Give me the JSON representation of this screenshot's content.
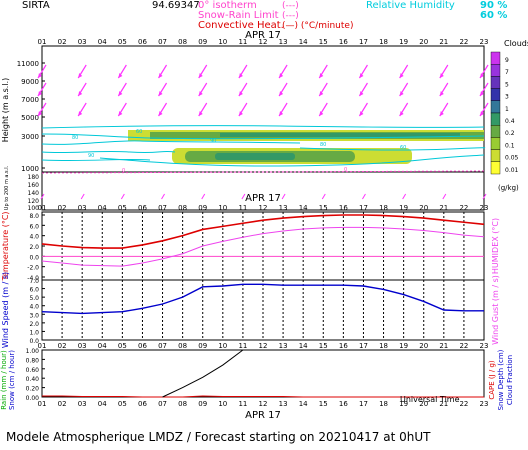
{
  "header": {
    "station": "SIRTA",
    "coords": "94.69347",
    "legend_left": [
      {
        "label": "0° isotherm",
        "line": "(---)",
        "color": "#ff44cc"
      },
      {
        "label": "Snow-Rain Limit",
        "line": "(---)",
        "color": "#ff44cc"
      },
      {
        "label": "Convective Heat.",
        "line": "(—) (°C/minute)",
        "color": "#dd0000"
      }
    ],
    "legend_right": {
      "label": "Relative Humidity",
      "v1": "90 %",
      "v2": "60 %",
      "color": "#00ccdd"
    }
  },
  "date_label": "APR 17",
  "hours": [
    "01",
    "02",
    "03",
    "04",
    "05",
    "06",
    "07",
    "08",
    "09",
    "10",
    "11",
    "12",
    "13",
    "14",
    "15",
    "16",
    "17",
    "18",
    "19",
    "20",
    "21",
    "22",
    "23"
  ],
  "panel1": {
    "ylabel": "Height (m a.s.l.)",
    "ylabel2": "Up to 200 m a.s.l.",
    "yticks": [
      "11000",
      "9000",
      "7000",
      "5000",
      "3000",
      "1000"
    ],
    "yticks_low": [
      "180",
      "160",
      "140",
      "120",
      "100"
    ],
    "clouds_label": "Clouds",
    "clouds_unit": "(g/kg)",
    "cloud_scale": [
      {
        "label": "9",
        "color": "#cc33ee"
      },
      {
        "label": "7",
        "color": "#9933dd"
      },
      {
        "label": "5",
        "color": "#6633bb"
      },
      {
        "label": "3",
        "color": "#3333aa"
      },
      {
        "label": "1",
        "color": "#337799"
      },
      {
        "label": "0.4",
        "color": "#339966"
      },
      {
        "label": "0.2",
        "color": "#66aa44"
      },
      {
        "label": "0.1",
        "color": "#99cc33"
      },
      {
        "label": "0.05",
        "color": "#ccdd33"
      },
      {
        "label": "0.01",
        "color": "#ffff33"
      }
    ],
    "rh_contour_labels": [
      "60",
      "80",
      "90"
    ]
  },
  "panel2": {
    "ylabel": "Temperature (°C)",
    "ylabel_right": "HUMIDEX (°C)",
    "yticks": [
      "8.0",
      "6.0",
      "4.0",
      "2.0",
      "0.0",
      "-2.0",
      "-4.0"
    ],
    "ylim": [
      -4,
      8
    ]
  },
  "panel3": {
    "ylabel": "Wind Speed (m / s)",
    "ylabel_right": "Wind Gust (m / s)",
    "yticks": [
      "7.0",
      "6.0",
      "5.0",
      "4.0",
      "3.0",
      "2.0",
      "1.0",
      "0.0"
    ],
    "ylim": [
      0,
      7
    ]
  },
  "panel4": {
    "ylabel_rain": "Rain (mm / hour)",
    "ylabel_snow": "Snow (cm / hour)",
    "ylabel_right1": "CAPE (J / g)",
    "ylabel_right2": "Snow Depth (cm)",
    "ylabel_right3": "Cloud Fraction",
    "yticks": [
      "1.00",
      "0.80",
      "0.60",
      "0.40",
      "0.20",
      "0.00"
    ],
    "ylim": [
      0,
      1
    ]
  },
  "footer": {
    "universal_time": "Universal Time",
    "caption": "Modele Atmospherique LMDZ / Forecast starting on 20210417 at 0hUT"
  },
  "chart_data": [
    {
      "type": "line",
      "title": "",
      "xlabel": "",
      "ylabel": "Temperature (°C)",
      "ylim": [
        -4,
        8
      ],
      "x": [
        "01",
        "02",
        "03",
        "04",
        "05",
        "06",
        "07",
        "08",
        "09",
        "10",
        "11",
        "12",
        "13",
        "14",
        "15",
        "16",
        "17",
        "18",
        "19",
        "20",
        "21",
        "22",
        "23"
      ],
      "series": [
        {
          "name": "Temperature",
          "color": "#dd0000",
          "values": [
            2.4,
            2.0,
            1.7,
            1.6,
            1.6,
            2.2,
            3.0,
            4.0,
            5.2,
            5.8,
            6.4,
            7.0,
            7.4,
            7.7,
            7.9,
            8.0,
            8.0,
            7.9,
            7.7,
            7.4,
            7.0,
            6.6,
            6.2
          ]
        },
        {
          "name": "HUMIDEX",
          "color": "#ee44ee",
          "values": [
            -0.9,
            -1.3,
            -1.7,
            -1.8,
            -1.9,
            -1.3,
            -0.5,
            0.5,
            2.0,
            2.9,
            3.7,
            4.4,
            4.9,
            5.3,
            5.5,
            5.6,
            5.6,
            5.5,
            5.3,
            5.0,
            4.6,
            4.1,
            3.8
          ]
        }
      ]
    },
    {
      "type": "line",
      "title": "",
      "xlabel": "",
      "ylabel": "Wind Speed (m / s)",
      "ylim": [
        0,
        7
      ],
      "x": [
        "01",
        "02",
        "03",
        "04",
        "05",
        "06",
        "07",
        "08",
        "09",
        "10",
        "11",
        "12",
        "13",
        "14",
        "15",
        "16",
        "17",
        "18",
        "19",
        "20",
        "21",
        "22",
        "23"
      ],
      "series": [
        {
          "name": "Wind Speed",
          "color": "#0000cc",
          "values": [
            3.3,
            3.2,
            3.1,
            3.2,
            3.3,
            3.7,
            4.2,
            5.0,
            6.2,
            6.3,
            6.5,
            6.5,
            6.4,
            6.4,
            6.4,
            6.4,
            6.3,
            5.9,
            5.3,
            4.5,
            3.5,
            3.4,
            3.4
          ]
        }
      ]
    },
    {
      "type": "line",
      "title": "",
      "xlabel": "Universal Time",
      "ylabel": "Rain (mm / hour)",
      "ylim": [
        0,
        1
      ],
      "x": [
        "01",
        "02",
        "03",
        "04",
        "05",
        "06",
        "07",
        "08",
        "09",
        "10",
        "11",
        "12",
        "13",
        "14",
        "15",
        "16",
        "17",
        "18",
        "19",
        "20",
        "21",
        "22",
        "23"
      ],
      "series": [
        {
          "name": "Rain",
          "color": "#dd0000",
          "values": [
            0.02,
            0.02,
            0.01,
            0.01,
            0.01,
            0.0,
            0.0,
            0.0,
            0.02,
            0.01,
            0.01,
            0.01,
            0.01,
            0.0,
            0.0,
            0.0,
            0.0,
            0.0,
            0.0,
            0.0,
            0.0,
            0.0,
            0.0
          ]
        },
        {
          "name": "Snow Depth",
          "color": "#000000",
          "values": [
            null,
            null,
            null,
            null,
            null,
            null,
            0.0,
            0.2,
            0.42,
            0.68,
            1.0,
            null,
            null,
            null,
            null,
            null,
            null,
            null,
            null,
            null,
            null,
            null,
            null
          ]
        }
      ]
    }
  ]
}
